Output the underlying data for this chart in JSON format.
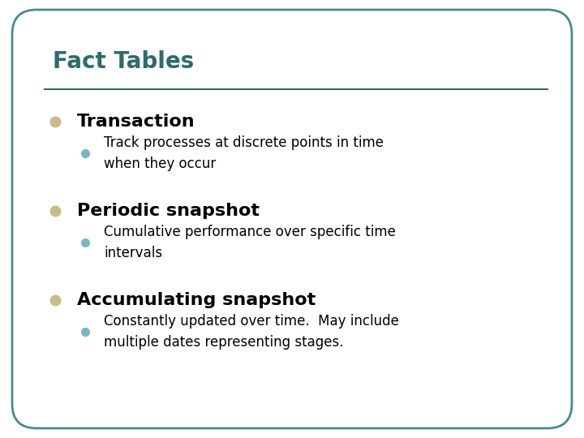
{
  "title": "Fact Tables",
  "title_color": "#2E6B6B",
  "title_fontsize": 20,
  "title_weight": "bold",
  "separator_color": "#2E6B6B",
  "background_color": "#FFFFFF",
  "border_color": "#4A8A8A",
  "bullet1_text": "Transaction",
  "bullet1_color": "#000000",
  "bullet1_dot_color": "#C8BB8A",
  "bullet1_fontsize": 16,
  "bullet1_weight": "bold",
  "sub1_text": "Track processes at discrete points in time\nwhen they occur",
  "sub1_color": "#000000",
  "sub1_dot_color": "#7AB8C0",
  "sub1_fontsize": 12,
  "bullet2_text": "Periodic snapshot",
  "bullet2_color": "#000000",
  "bullet2_dot_color": "#C8BB8A",
  "bullet2_fontsize": 16,
  "bullet2_weight": "bold",
  "sub2_text": "Cumulative performance over specific time\nintervals",
  "sub2_color": "#000000",
  "sub2_dot_color": "#7AB8C0",
  "sub2_fontsize": 12,
  "bullet3_text": "Accumulating snapshot",
  "bullet3_color": "#000000",
  "bullet3_dot_color": "#C8BB8A",
  "bullet3_fontsize": 16,
  "bullet3_weight": "bold",
  "sub3_text": "Constantly updated over time.  May include\nmultiple dates representing stages.",
  "sub3_color": "#000000",
  "sub3_dot_color": "#7AB8C0",
  "sub3_fontsize": 12,
  "fig_width": 7.2,
  "fig_height": 5.4,
  "dpi": 100
}
